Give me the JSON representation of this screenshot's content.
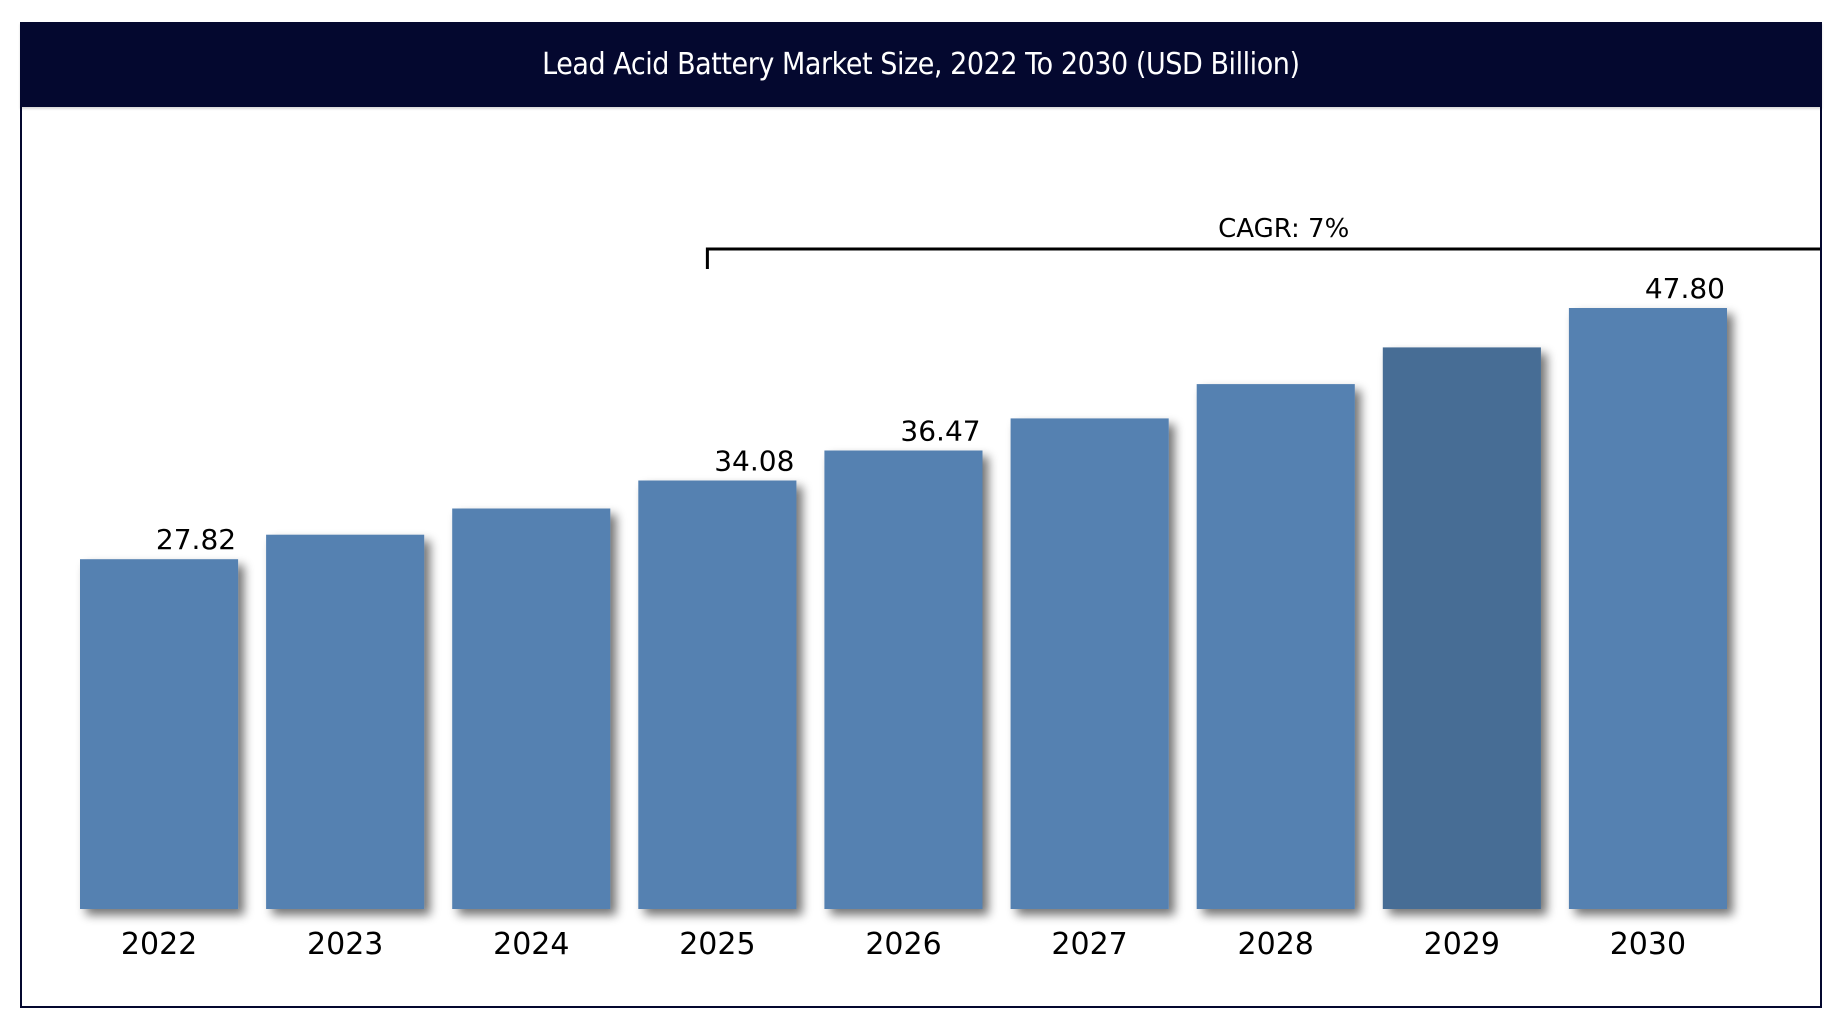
{
  "chart_data": {
    "type": "bar",
    "title": "Lead Acid Battery Market Size, 2022 To 2030 (USD Billion)",
    "xlabel": "",
    "ylabel": "",
    "categories": [
      "2022",
      "2023",
      "2024",
      "2025",
      "2026",
      "2027",
      "2028",
      "2029",
      "2030"
    ],
    "values": [
      27.82,
      29.77,
      31.85,
      34.08,
      36.47,
      39.02,
      41.75,
      44.67,
      47.8
    ],
    "data_labels": [
      "27.82",
      null,
      null,
      "34.08",
      "36.47",
      null,
      null,
      null,
      "47.80"
    ],
    "ylim": [
      0,
      48
    ],
    "grid": false,
    "legend": "none",
    "annotation": {
      "text": "CAGR: 7%",
      "from_category": "2025",
      "to_category": "end"
    },
    "colors": {
      "bar": "#5581b1",
      "highlight_bar": "#466d95",
      "highlight_category": "2029",
      "title_bg": "#04082f",
      "title_text": "#ffffff",
      "frame": "#04082f",
      "axis": "#000000"
    }
  }
}
